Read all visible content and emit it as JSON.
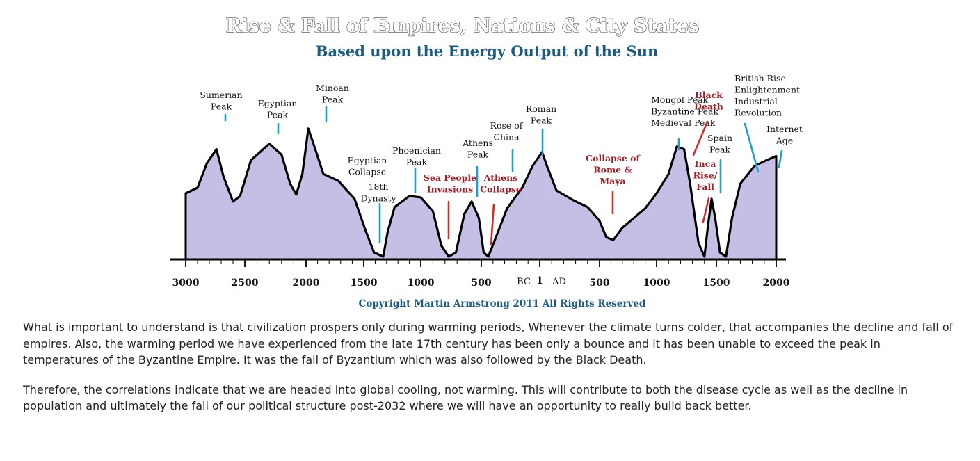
{
  "chart_data": {
    "type": "area",
    "title": "Rise & Fall of Empires, Nations & City States",
    "subtitle": "Based upon the Energy Output of the Sun",
    "copyright": "Copyright Martin Armstrong 2011 All Rights Reserved",
    "x_ticks": [
      {
        "year": -3000,
        "label": "3000"
      },
      {
        "year": -2500,
        "label": "2500"
      },
      {
        "year": -2000,
        "label": "2000"
      },
      {
        "year": -1500,
        "label": "1500"
      },
      {
        "year": -1000,
        "label": "1000"
      },
      {
        "year": -500,
        "label": "500"
      },
      {
        "year": 500,
        "label": "500"
      },
      {
        "year": 1000,
        "label": "1000"
      },
      {
        "year": 1500,
        "label": "1500"
      },
      {
        "year": 2000,
        "label": "2000"
      }
    ],
    "era_labels": {
      "bc": "BC",
      "one": "1",
      "ad": "AD"
    },
    "fill_color": "#c5bfe6",
    "line_color": "#000000",
    "series": [
      {
        "points": [
          [
            -3000,
            0.48
          ],
          [
            -2900,
            0.52
          ],
          [
            -2820,
            0.7
          ],
          [
            -2740,
            0.8
          ],
          [
            -2680,
            0.6
          ],
          [
            -2600,
            0.42
          ],
          [
            -2540,
            0.46
          ],
          [
            -2450,
            0.72
          ],
          [
            -2300,
            0.84
          ],
          [
            -2200,
            0.76
          ],
          [
            -2130,
            0.55
          ],
          [
            -2080,
            0.47
          ],
          [
            -2030,
            0.62
          ],
          [
            -1980,
            0.95
          ],
          [
            -1920,
            0.8
          ],
          [
            -1850,
            0.62
          ],
          [
            -1720,
            0.57
          ],
          [
            -1580,
            0.44
          ],
          [
            -1480,
            0.2
          ],
          [
            -1410,
            0.05
          ],
          [
            -1330,
            0.02
          ],
          [
            -1290,
            0.2
          ],
          [
            -1230,
            0.38
          ],
          [
            -1100,
            0.46
          ],
          [
            -1000,
            0.45
          ],
          [
            -900,
            0.35
          ],
          [
            -830,
            0.1
          ],
          [
            -770,
            0.02
          ],
          [
            -710,
            0.05
          ],
          [
            -640,
            0.33
          ],
          [
            -580,
            0.42
          ],
          [
            -520,
            0.3
          ],
          [
            -480,
            0.05
          ],
          [
            -440,
            0.02
          ],
          [
            -380,
            0.15
          ],
          [
            -280,
            0.37
          ],
          [
            -150,
            0.52
          ],
          [
            -60,
            0.68
          ],
          [
            20,
            0.78
          ],
          [
            60,
            0.68
          ],
          [
            140,
            0.5
          ],
          [
            280,
            0.43
          ],
          [
            400,
            0.38
          ],
          [
            500,
            0.28
          ],
          [
            560,
            0.16
          ],
          [
            620,
            0.14
          ],
          [
            700,
            0.23
          ],
          [
            900,
            0.37
          ],
          [
            1000,
            0.48
          ],
          [
            1100,
            0.62
          ],
          [
            1170,
            0.82
          ],
          [
            1230,
            0.8
          ],
          [
            1280,
            0.55
          ],
          [
            1350,
            0.12
          ],
          [
            1400,
            0.02
          ],
          [
            1430,
            0.25
          ],
          [
            1460,
            0.44
          ],
          [
            1490,
            0.3
          ],
          [
            1530,
            0.05
          ],
          [
            1580,
            0.02
          ],
          [
            1630,
            0.3
          ],
          [
            1700,
            0.55
          ],
          [
            1820,
            0.68
          ],
          [
            1920,
            0.72
          ],
          [
            2000,
            0.75
          ]
        ]
      }
    ],
    "annotations": [
      {
        "lines": [
          "Sumerian",
          "Peak"
        ],
        "year": -2730,
        "color": "#111111"
      },
      {
        "lines": [
          "Egyptian",
          "Peak"
        ],
        "year": -2275,
        "color": "#111111"
      },
      {
        "lines": [
          "Minoan",
          "Peak"
        ],
        "year": -1950,
        "color": "#111111"
      },
      {
        "lines": [
          "Egyptian",
          "Collapse"
        ],
        "year": -1500,
        "color": "#111111"
      },
      {
        "lines": [
          "18th",
          "Dynasty"
        ],
        "year": -1400,
        "color": "#111111"
      },
      {
        "lines": [
          "Phoenician",
          "Peak"
        ],
        "year": -1050,
        "color": "#111111"
      },
      {
        "lines": [
          "Sea People",
          "Invasions"
        ],
        "year": -770,
        "color": "#a0202a"
      },
      {
        "lines": [
          "Athens",
          "Peak"
        ],
        "year": -550,
        "color": "#111111"
      },
      {
        "lines": [
          "Athens",
          "Collapse"
        ],
        "year": -440,
        "color": "#a0202a"
      },
      {
        "lines": [
          "Rose of",
          "China"
        ],
        "year": -220,
        "color": "#111111"
      },
      {
        "lines": [
          "Roman",
          "Peak"
        ],
        "year": 20,
        "color": "#111111"
      },
      {
        "lines": [
          "Collapse of",
          "Rome &",
          "Maya"
        ],
        "year": 600,
        "color": "#a0202a"
      },
      {
        "lines": [
          "Mongol Peak",
          "Byzantine Peak",
          "Medieval Peak"
        ],
        "year": 1200,
        "color": "#111111"
      },
      {
        "lines": [
          "Black",
          "Death"
        ],
        "year": 1350,
        "color": "#a0202a"
      },
      {
        "lines": [
          "Inca",
          "Rise/",
          "Fall"
        ],
        "year": 1420,
        "color": "#a0202a"
      },
      {
        "lines": [
          "Spain",
          "Peak"
        ],
        "year": 1460,
        "color": "#111111"
      },
      {
        "lines": [
          "British Rise",
          "Enlightenment",
          "Industrial",
          "Revolution"
        ],
        "year": 1650,
        "color": "#111111"
      },
      {
        "lines": [
          "Internet",
          "Age"
        ],
        "year": 2000,
        "color": "#111111"
      }
    ]
  },
  "article": {
    "paragraphs": [
      "What is important to understand is that civilization prospers only during warming periods, Whenever the climate turns colder, that accompanies the decline and fall of empires. Also, the warming period we have experienced from the late 17th century has been only a bounce and it has been unable to exceed the peak in temperatures of the Byzantine Empire. It was the fall of Byzantium which was also followed by the Black Death.",
      "Therefore, the correlations indicate that we are headed into global cooling, not warming. This will contribute to both the disease cycle as well as the decline in population and ultimately the fall of our political structure post-2032 where we will have an opportunity to really build back better."
    ]
  }
}
